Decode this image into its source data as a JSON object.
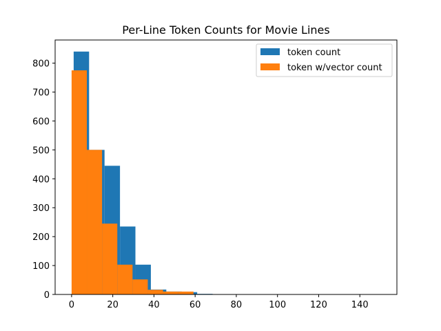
{
  "chart_data": {
    "type": "bar",
    "title": "Per-Line Token Counts for Movie Lines",
    "xlabel": "",
    "ylabel": "",
    "xlim": [
      -8,
      158
    ],
    "ylim": [
      0,
      880
    ],
    "xticks": [
      0,
      20,
      40,
      60,
      80,
      100,
      120,
      140
    ],
    "yticks": [
      0,
      100,
      200,
      300,
      400,
      500,
      600,
      700,
      800
    ],
    "grid": false,
    "legend_position": "top-right",
    "series": [
      {
        "name": "token count",
        "color": "#1f77b4",
        "bins": [
          {
            "x0": 1,
            "x1": 8.5,
            "value": 840
          },
          {
            "x0": 8.5,
            "x1": 16,
            "value": 500
          },
          {
            "x0": 16,
            "x1": 23.5,
            "value": 445
          },
          {
            "x0": 23.5,
            "x1": 31,
            "value": 235
          },
          {
            "x0": 31,
            "x1": 38.5,
            "value": 103
          },
          {
            "x0": 38.5,
            "x1": 46,
            "value": 17
          },
          {
            "x0": 46,
            "x1": 53.5,
            "value": 10
          },
          {
            "x0": 53.5,
            "x1": 61,
            "value": 8
          },
          {
            "x0": 61,
            "x1": 68.5,
            "value": 2
          },
          {
            "x0": 68.5,
            "x1": 76,
            "value": 1
          },
          {
            "x0": 76,
            "x1": 83.5,
            "value": 0
          },
          {
            "x0": 83.5,
            "x1": 91,
            "value": 0
          },
          {
            "x0": 91,
            "x1": 98.5,
            "value": 0
          },
          {
            "x0": 98.5,
            "x1": 106,
            "value": 0
          },
          {
            "x0": 106,
            "x1": 113.5,
            "value": 0
          },
          {
            "x0": 113.5,
            "x1": 121,
            "value": 0
          },
          {
            "x0": 121,
            "x1": 128.5,
            "value": 0
          },
          {
            "x0": 128.5,
            "x1": 136,
            "value": 0
          },
          {
            "x0": 136,
            "x1": 143.5,
            "value": 0
          },
          {
            "x0": 143.5,
            "x1": 151,
            "value": 1
          }
        ]
      },
      {
        "name": "token w/vector count",
        "color": "#ff7f0e",
        "bins": [
          {
            "x0": 0,
            "x1": 7.4,
            "value": 775
          },
          {
            "x0": 7.4,
            "x1": 14.8,
            "value": 500
          },
          {
            "x0": 14.8,
            "x1": 22.2,
            "value": 245
          },
          {
            "x0": 22.2,
            "x1": 29.6,
            "value": 103
          },
          {
            "x0": 29.6,
            "x1": 37,
            "value": 52
          },
          {
            "x0": 37,
            "x1": 44.4,
            "value": 16
          },
          {
            "x0": 44.4,
            "x1": 51.8,
            "value": 10
          },
          {
            "x0": 51.8,
            "x1": 59.2,
            "value": 10
          },
          {
            "x0": 59.2,
            "x1": 66.6,
            "value": 1
          },
          {
            "x0": 66.6,
            "x1": 74,
            "value": 1
          },
          {
            "x0": 74,
            "x1": 81.4,
            "value": 0
          },
          {
            "x0": 81.4,
            "x1": 88.8,
            "value": 0
          },
          {
            "x0": 88.8,
            "x1": 96.2,
            "value": 1
          }
        ]
      }
    ]
  }
}
